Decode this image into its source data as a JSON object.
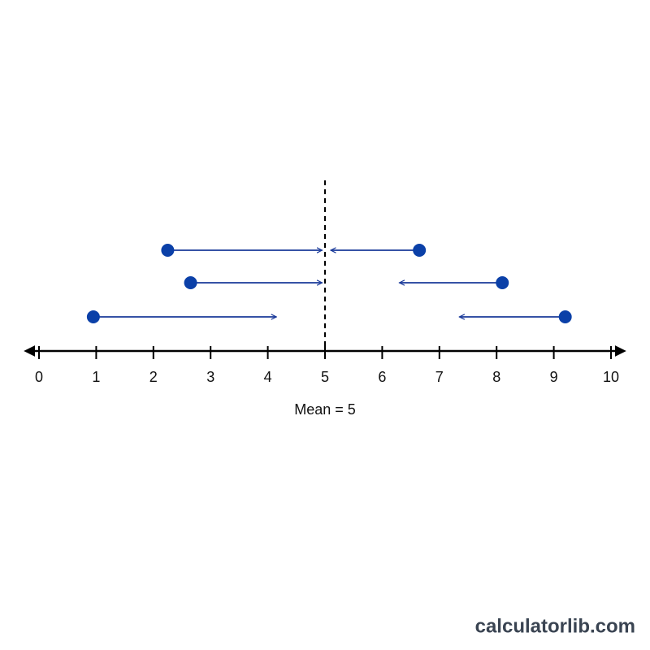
{
  "chart_data": {
    "type": "dotplot",
    "x": [
      2.25,
      6.65,
      2.65,
      8.1,
      0.95,
      9.2
    ],
    "arrow_to": [
      4.95,
      5.1,
      4.95,
      6.3,
      4.15,
      7.35
    ],
    "color": "#0b40a8",
    "xlim": [
      0,
      10
    ],
    "xticks": [
      0,
      1,
      2,
      3,
      4,
      5,
      6,
      7,
      8,
      9,
      10
    ],
    "mean": 5,
    "mean_label": "Mean = 5"
  },
  "watermark": "calculatorlib.com"
}
